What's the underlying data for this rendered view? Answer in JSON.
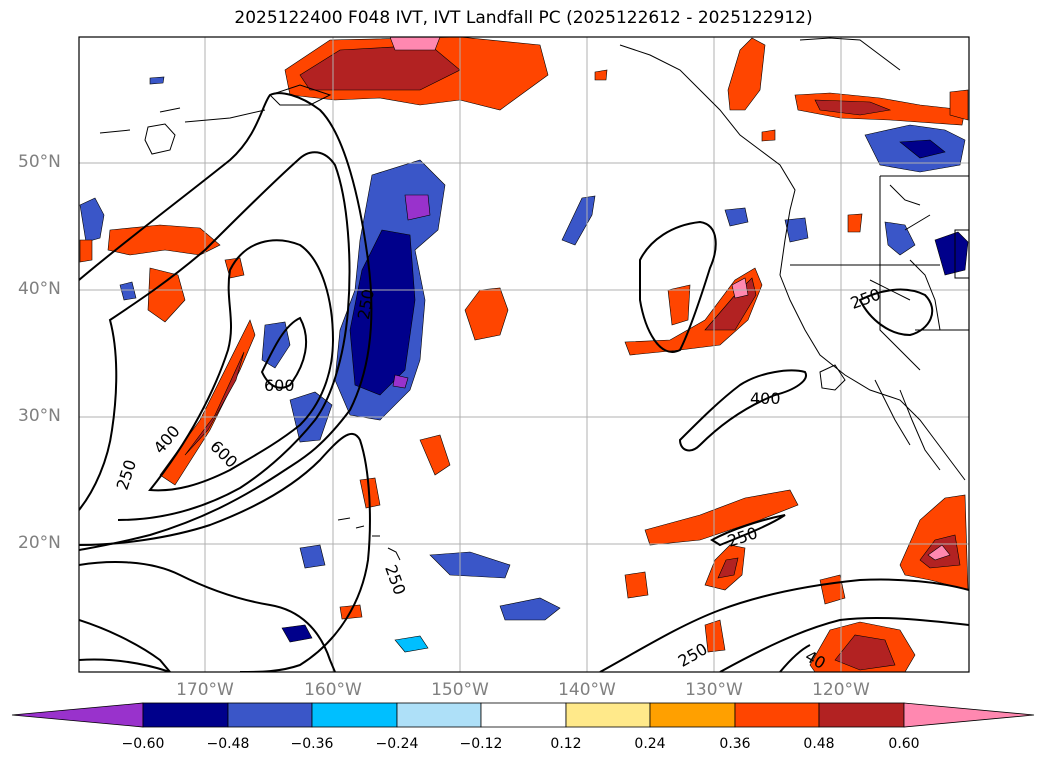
{
  "title": "2025122400 F048 IVT, IVT Landfall PC (2025122612 - 2025122912)",
  "map": {
    "lat_labels": [
      "50°N",
      "40°N",
      "30°N",
      "20°N"
    ],
    "lon_labels": [
      "170°W",
      "160°W",
      "150°W",
      "140°W",
      "130°W",
      "120°W"
    ],
    "contour_labels": [
      "250",
      "400",
      "600",
      "600",
      "250",
      "400",
      "250",
      "250",
      "250",
      "40"
    ]
  },
  "colorbar": {
    "ticks": [
      "−0.60",
      "−0.48",
      "−0.36",
      "−0.24",
      "−0.12",
      "0.12",
      "0.24",
      "0.36",
      "0.48",
      "0.60"
    ],
    "colors": [
      "#9932cc",
      "#00008b",
      "#3a56c8",
      "#00bfff",
      "#aee0f8",
      "#ffffff",
      "#ffe98a",
      "#ffa000",
      "#ff4500",
      "#b22222",
      "#ff88b0"
    ]
  }
}
